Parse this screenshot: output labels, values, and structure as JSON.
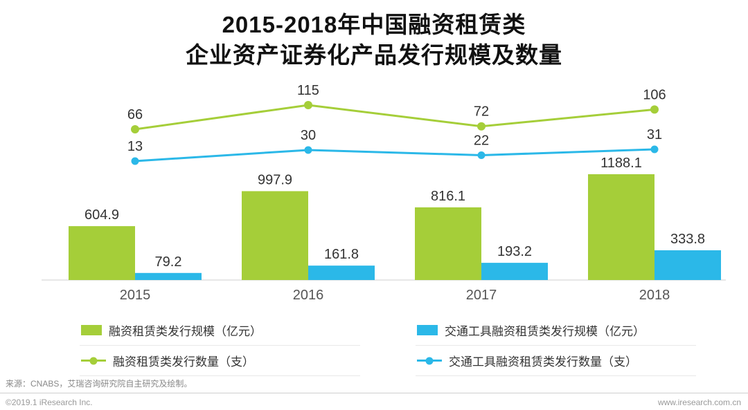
{
  "header": {
    "title_line1": "2015-2018年中国融资租赁类",
    "title_line2": "企业资产证券化产品发行规模及数量"
  },
  "chart_data": {
    "type": "bar+line",
    "title": "2015-2018年中国融资租赁类企业资产证券化产品发行规模及数量",
    "categories": [
      "2015",
      "2016",
      "2017",
      "2018"
    ],
    "series": [
      {
        "name": "融资租赁类发行规模（亿元）",
        "type": "bar",
        "color": "#a5ce39",
        "values": [
          604.9,
          997.9,
          816.1,
          1188.1
        ]
      },
      {
        "name": "交通工具融资租赁类发行规模（亿元）",
        "type": "bar",
        "color": "#2bb8e8",
        "values": [
          79.2,
          161.8,
          193.2,
          333.8
        ]
      },
      {
        "name": "融资租赁类发行数量（支）",
        "type": "line",
        "color": "#a5ce39",
        "values": [
          66,
          115,
          72,
          106
        ]
      },
      {
        "name": "交通工具融资租赁类发行数量（支）",
        "type": "line",
        "color": "#2bb8e8",
        "values": [
          13,
          30,
          22,
          31
        ]
      }
    ],
    "legend_position": "bottom",
    "grid": false,
    "label_color": "#333333",
    "axis_color": "#cfcfcf"
  },
  "footer": {
    "source": "来源：CNABS，艾瑞咨询研究院自主研究及绘制。",
    "copyright": "©2019.1 iResearch Inc.",
    "website": "www.iresearch.com.cn"
  }
}
